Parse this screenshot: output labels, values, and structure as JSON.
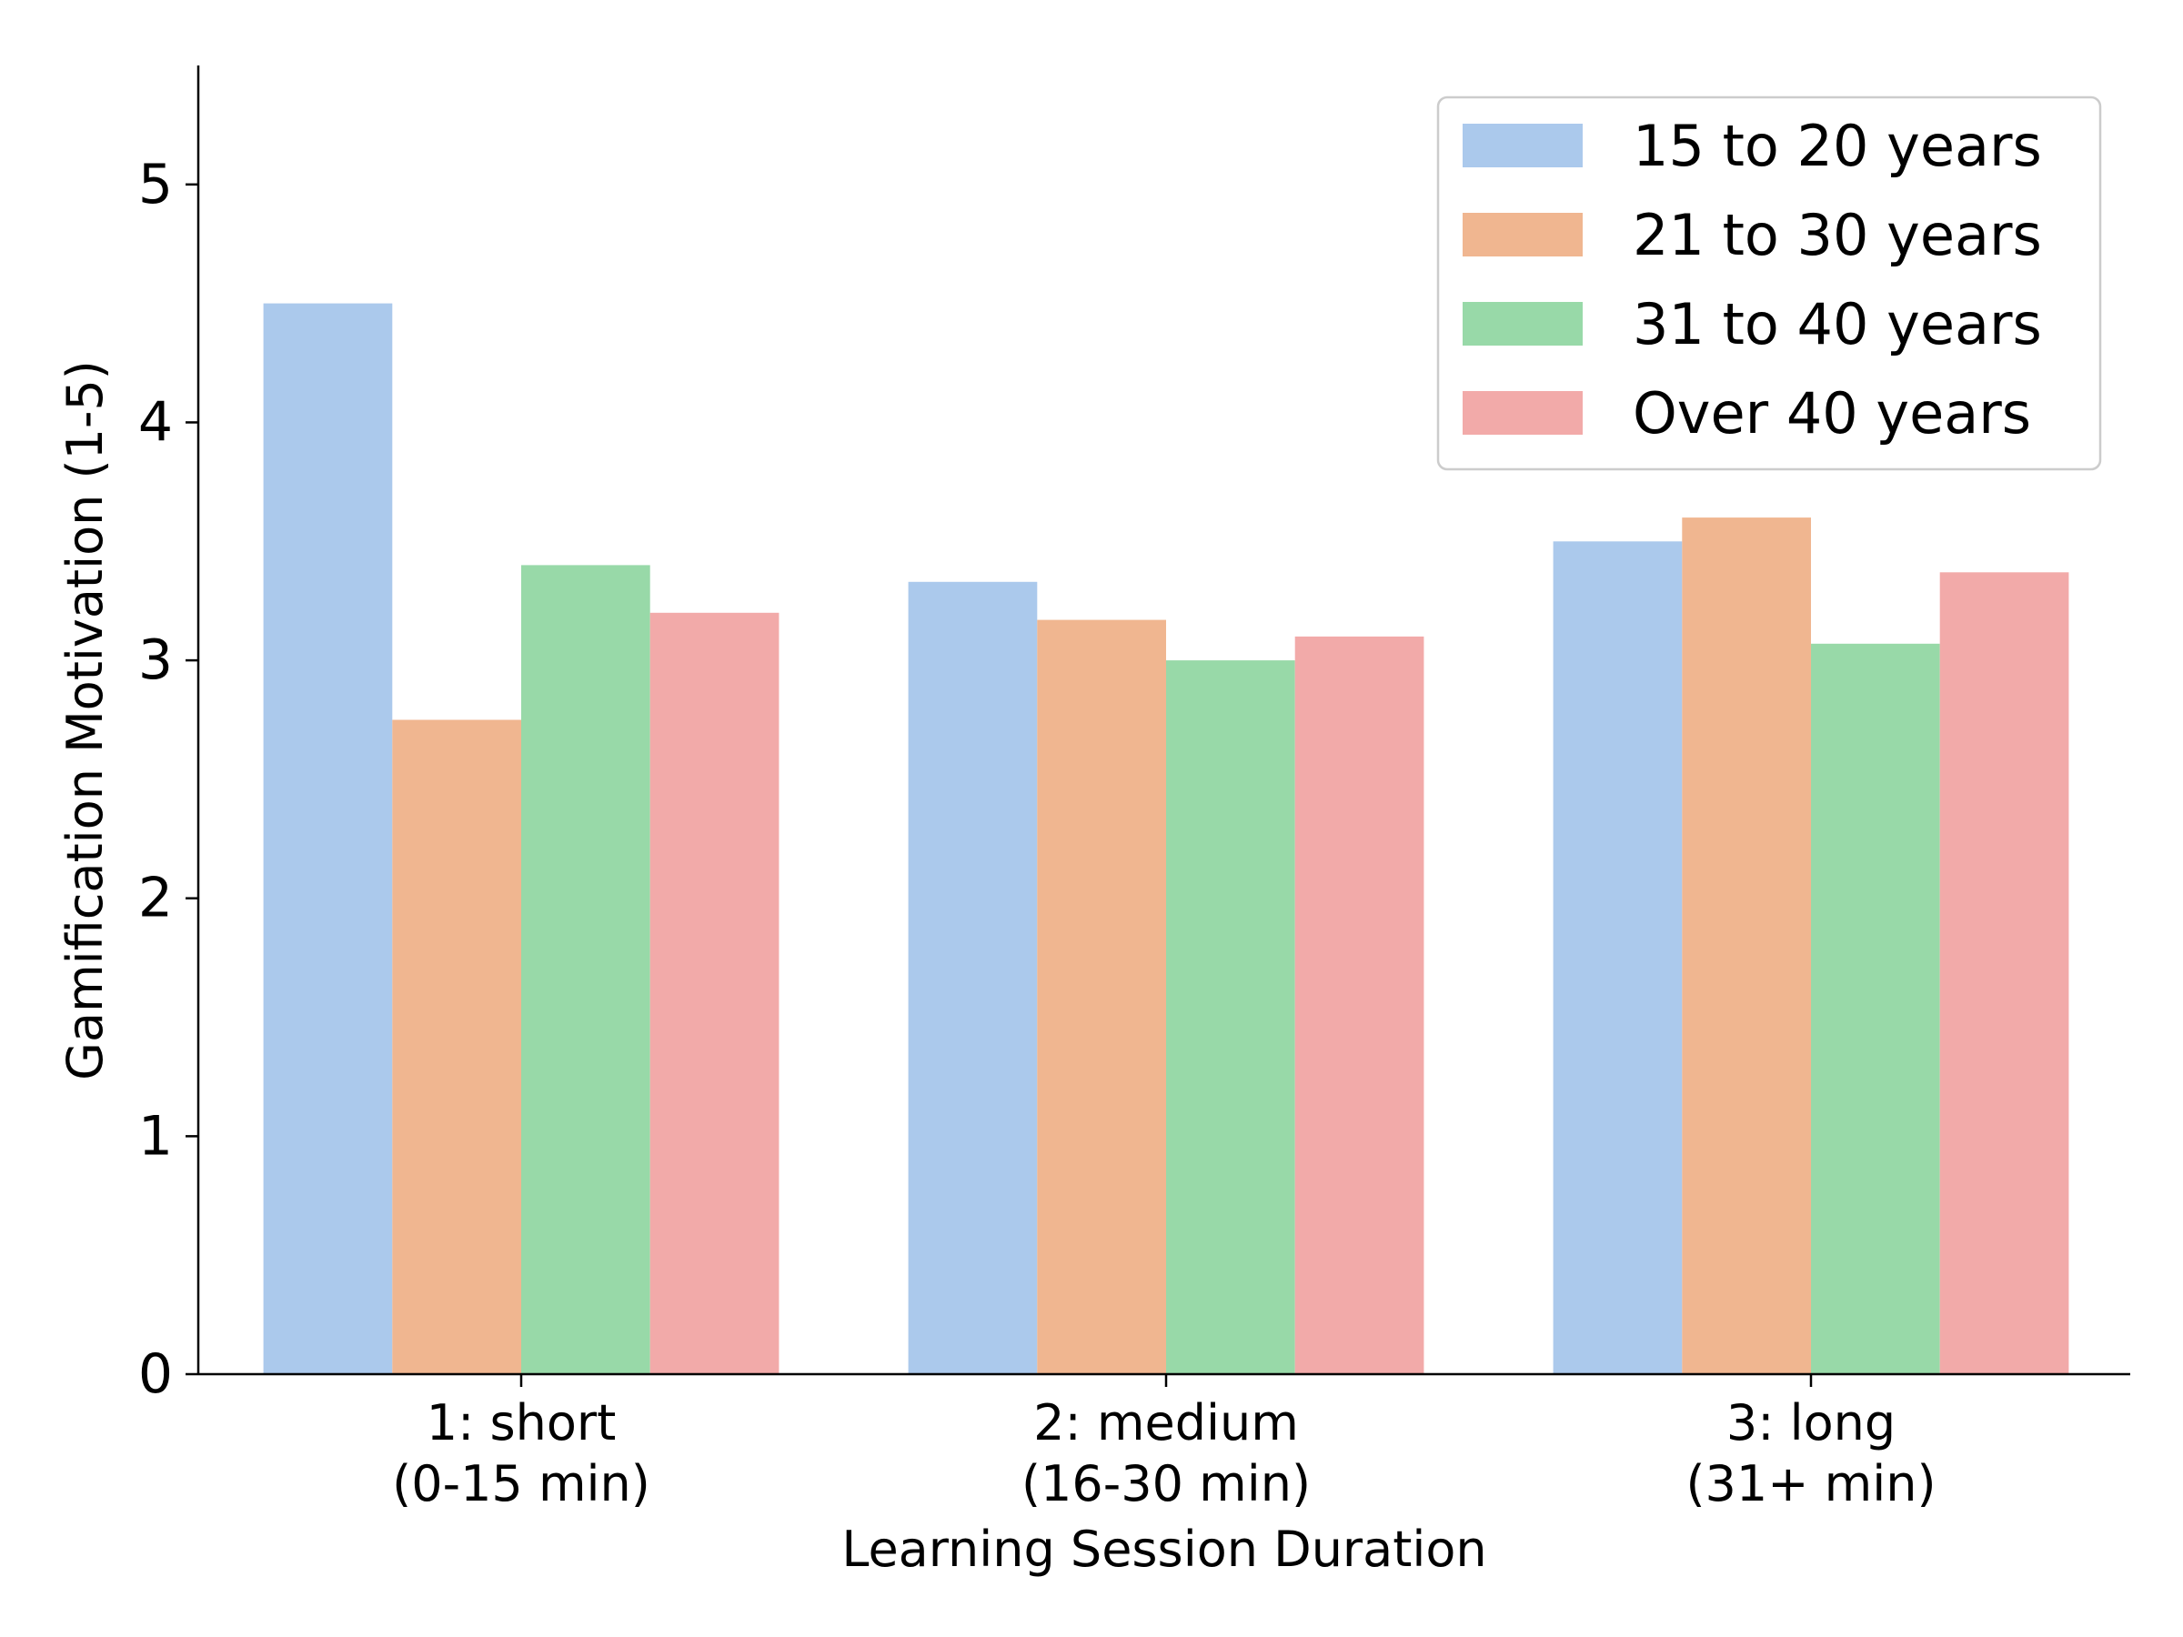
{
  "chart_data": {
    "type": "bar",
    "title": "",
    "xlabel": "Learning Session Duration",
    "ylabel": "Gamification Motivation (1-5)",
    "ylim": [
      0,
      5.5
    ],
    "yticks": [
      0,
      1,
      2,
      3,
      4,
      5
    ],
    "ytick_labels": [
      "0",
      "1",
      "2",
      "3",
      "4",
      "5"
    ],
    "categories": [
      {
        "line1": "1: short",
        "line2": "(0-15 min)"
      },
      {
        "line1": "2: medium",
        "line2": "(16-30 min)"
      },
      {
        "line1": "3: long",
        "line2": "(31+ min)"
      }
    ],
    "series": [
      {
        "name": "15 to 20 years",
        "color": "#abc9ec",
        "values": [
          4.5,
          3.33,
          3.5
        ]
      },
      {
        "name": "21 to 30 years",
        "color": "#f0b690",
        "values": [
          2.75,
          3.17,
          3.6
        ]
      },
      {
        "name": "31 to 40 years",
        "color": "#98d9a8",
        "values": [
          3.4,
          3.0,
          3.07
        ]
      },
      {
        "name": "Over 40 years",
        "color": "#f2aaa9",
        "values": [
          3.2,
          3.1,
          3.37
        ]
      }
    ],
    "legend_position": "top-right",
    "grid": false
  }
}
